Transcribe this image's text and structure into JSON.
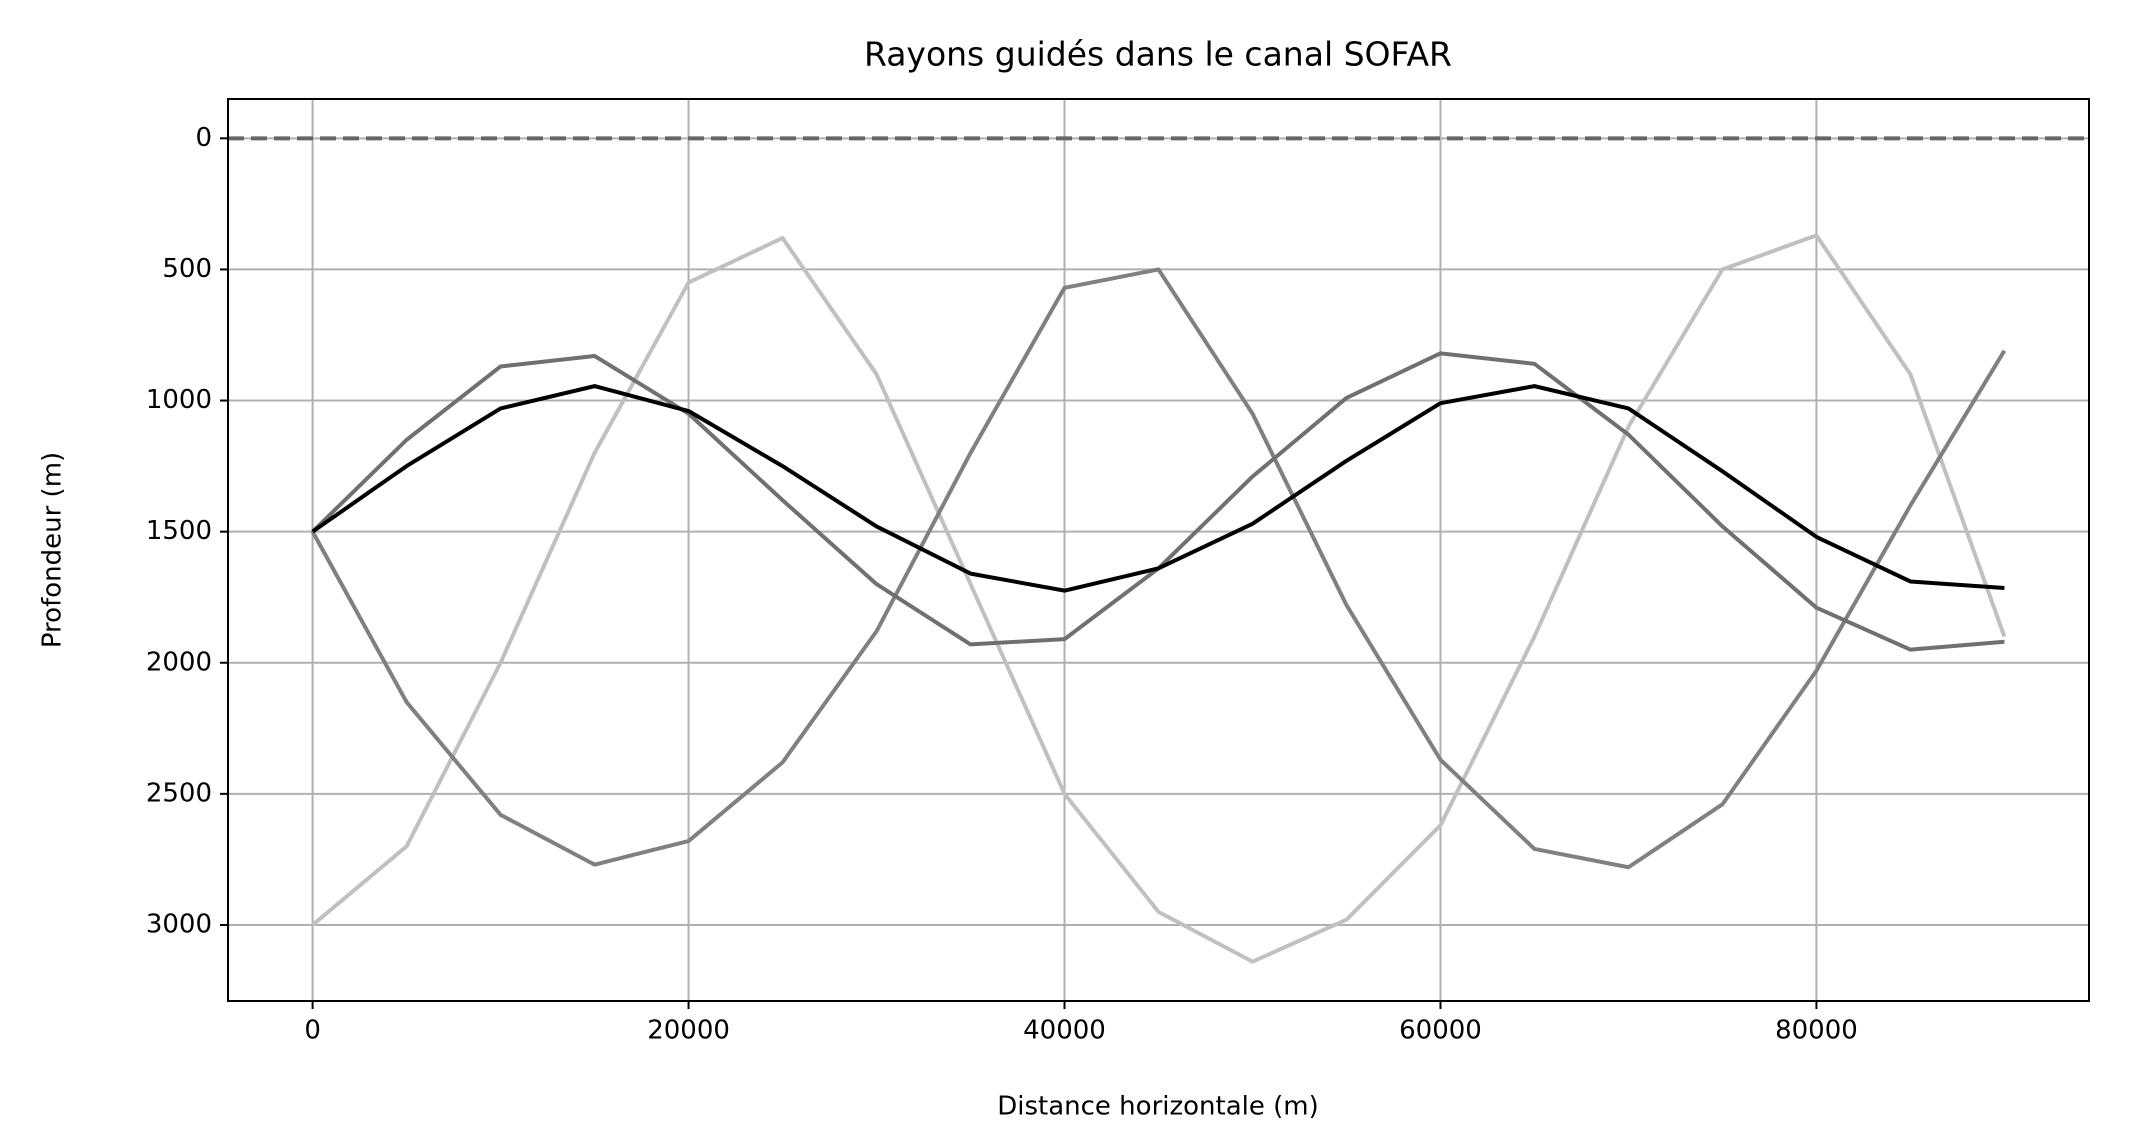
{
  "chart_data": {
    "type": "line",
    "title": "Rayons guidés dans le canal SOFAR",
    "x_label": "Distance horizontale (m)",
    "y_label": "Profondeur (m)",
    "x": [
      0,
      5000,
      10000,
      15000,
      20000,
      25000,
      30000,
      35000,
      40000,
      45000,
      50000,
      55000,
      60000,
      65000,
      70000,
      75000,
      80000,
      85000,
      90000
    ],
    "series": [
      {
        "color": "#c0c0c0",
        "values": [
          3000,
          2700,
          2000,
          1200,
          550,
          380,
          900,
          1700,
          2500,
          2950,
          3140,
          2980,
          2620,
          1900,
          1100,
          500,
          370,
          900,
          1900
        ]
      },
      {
        "color": "#808080",
        "values": [
          1500,
          2150,
          2580,
          2770,
          2680,
          2380,
          1880,
          1200,
          570,
          500,
          1050,
          1780,
          2370,
          2710,
          2780,
          2540,
          2030,
          1400,
          810
        ]
      },
      {
        "color": "#707070",
        "values": [
          1500,
          1150,
          870,
          830,
          1050,
          1380,
          1700,
          1930,
          1910,
          1640,
          1290,
          990,
          820,
          860,
          1130,
          1480,
          1790,
          1950,
          1920
        ]
      },
      {
        "color": "#000000",
        "values": [
          1500,
          1250,
          1030,
          945,
          1040,
          1250,
          1480,
          1660,
          1725,
          1640,
          1470,
          1230,
          1010,
          945,
          1030,
          1270,
          1520,
          1690,
          1715
        ]
      }
    ],
    "reference_line": {
      "y": 0,
      "color": "#666666",
      "dashed": true
    },
    "xlim": [
      -4500,
      94500
    ],
    "ylim": [
      3290,
      -150
    ],
    "xticks": [
      0,
      20000,
      40000,
      60000,
      80000
    ],
    "yticks": [
      0,
      500,
      1000,
      1500,
      2000,
      2500,
      3000
    ],
    "grid": true
  }
}
